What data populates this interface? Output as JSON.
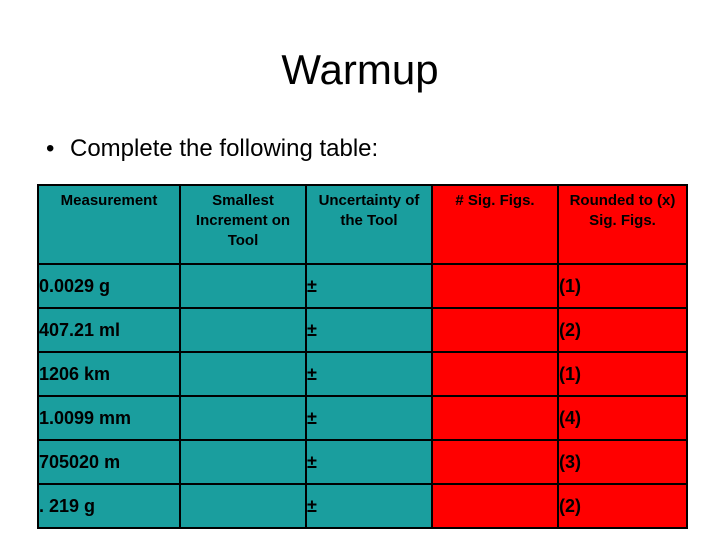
{
  "slide": {
    "title": "Warmup",
    "bullet_marker": "•",
    "bullet_text": "Complete the following table:"
  },
  "table": {
    "headers": [
      "Measurement",
      "Smallest Increment on Tool",
      "Uncertainty of the Tool",
      "# Sig. Figs.",
      "Rounded to (x) Sig. Figs."
    ],
    "rows": [
      {
        "measurement": "0.0029 g",
        "smallest_increment": "",
        "uncertainty": "±",
        "sig_figs": "",
        "rounded": "(1)"
      },
      {
        "measurement": "407.21 ml",
        "smallest_increment": "",
        "uncertainty": "±",
        "sig_figs": "",
        "rounded": "(2)"
      },
      {
        "measurement": "1206 km",
        "smallest_increment": "",
        "uncertainty": "±",
        "sig_figs": "",
        "rounded": "(1)"
      },
      {
        "measurement": "1.0099 mm",
        "smallest_increment": "",
        "uncertainty": "±",
        "sig_figs": "",
        "rounded": "(4)"
      },
      {
        "measurement": "705020 m",
        "smallest_increment": "",
        "uncertainty": "±",
        "sig_figs": "",
        "rounded": "(3)"
      },
      {
        "measurement": ". 219 g",
        "smallest_increment": "",
        "uncertainty": "±",
        "sig_figs": "",
        "rounded": "(2)"
      }
    ]
  },
  "colors": {
    "teal_fill": "#1a9e9e",
    "red_fill": "#ff0000",
    "border": "#000000"
  }
}
